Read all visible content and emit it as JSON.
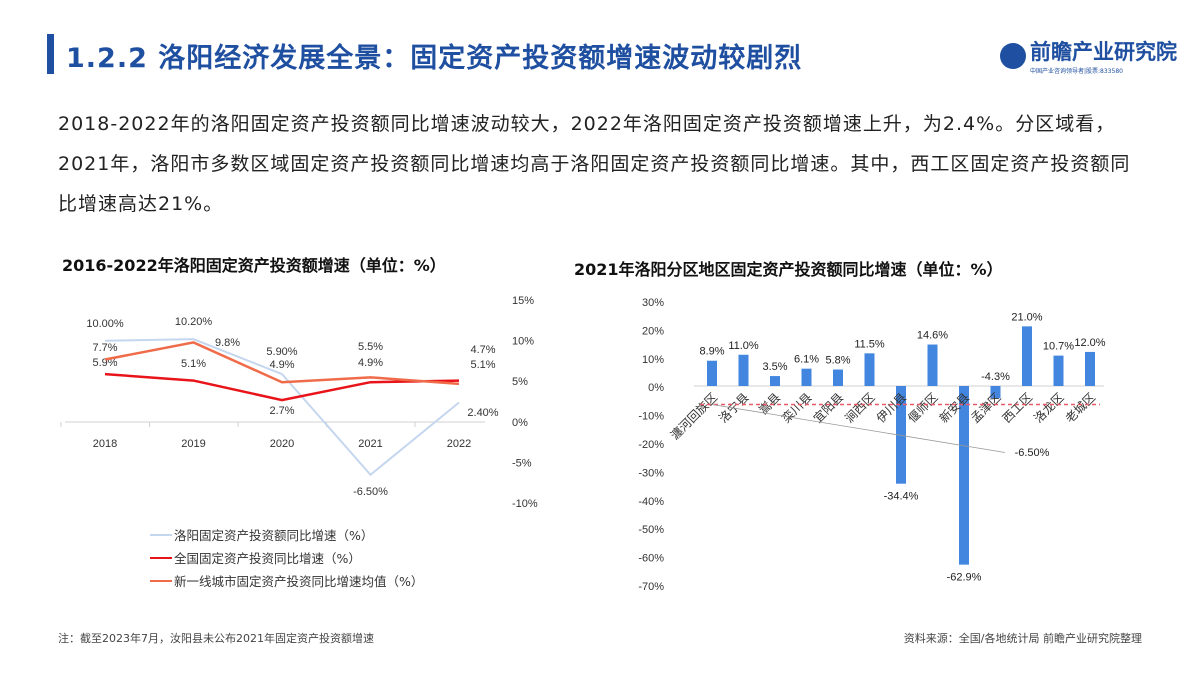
{
  "header": {
    "title": "1.2.2 洛阳经济发展全景：固定资产投资额增速波动较剧烈",
    "logo_name": "前瞻产业研究院",
    "logo_sub": "中国产业咨询领导者|股票:833580"
  },
  "intro": "2018-2022年的洛阳固定资产投资额同比增速波动较大，2022年洛阳固定资产投资额增速上升，为2.4%。分区域看，2021年，洛阳市多数区域固定资产投资额同比增速均高于洛阳固定资产投资额同比增速。其中，西工区固定资产投资额同比增速高达21%。",
  "colors": {
    "brand": "#1f4fa0",
    "luoyang": "#c5d6ef",
    "national": "#e8141a",
    "tier1": "#ef6b4a",
    "bar": "#4286e0",
    "avg_line": "#e85a6a"
  },
  "chart_data": [
    {
      "type": "line",
      "title": "2016-2022年洛阳固定资产投资额增速（单位：%）",
      "categories": [
        "2018",
        "2019",
        "2020",
        "2021",
        "2022"
      ],
      "ylim": [
        -10,
        15
      ],
      "yticks": [
        "15%",
        "10%",
        "5%",
        "0%",
        "-5%",
        "-10%"
      ],
      "y_axis": "right",
      "legend": "bottom",
      "series": [
        {
          "name": "洛阳固定资产投资额同比增速（%）",
          "values": [
            10.0,
            10.2,
            5.9,
            -6.5,
            2.4
          ],
          "labels": [
            "10.00%",
            "10.20%",
            "5.90%",
            "-6.50%",
            "2.40%"
          ],
          "color": "#c5d6ef"
        },
        {
          "name": "全国固定资产投资同比增速（%）",
          "values": [
            5.9,
            5.1,
            2.7,
            4.9,
            5.1
          ],
          "labels": [
            "5.9%",
            "5.1%",
            "2.7%",
            "4.9%",
            "5.1%"
          ],
          "color": "#e8141a"
        },
        {
          "name": "新一线城市固定资产投资同比增速均值（%）",
          "values": [
            7.7,
            9.8,
            4.9,
            5.5,
            4.7
          ],
          "labels": [
            "7.7%",
            "9.8%",
            "4.9%",
            "5.5%",
            "4.7%"
          ],
          "color": "#ef6b4a"
        }
      ]
    },
    {
      "type": "bar",
      "title": "2021年洛阳分区地区固定资产投资额同比增速（单位：%）",
      "categories": [
        "瀍河回族区",
        "洛宁县",
        "嵩县",
        "栾川县",
        "宜阳县",
        "涧西区",
        "伊川县",
        "偃师区",
        "新安县",
        "孟津区",
        "西工区",
        "洛龙区",
        "老城区"
      ],
      "values": [
        8.9,
        11.0,
        3.5,
        6.1,
        5.8,
        11.5,
        -34.4,
        14.6,
        -62.9,
        -4.3,
        21.0,
        10.7,
        12.0
      ],
      "labels": [
        "8.9%",
        "11.0%",
        "3.5%",
        "6.1%",
        "5.8%",
        "11.5%",
        "-34.4%",
        "14.6%",
        "-62.9%",
        "-4.3%",
        "21.0%",
        "10.7%",
        "12.0%"
      ],
      "ylim": [
        -70,
        30
      ],
      "yticks": [
        "30%",
        "20%",
        "10%",
        "0%",
        "-10%",
        "-20%",
        "-30%",
        "-40%",
        "-50%",
        "-60%",
        "-70%"
      ],
      "reference_line": {
        "value": -6.5,
        "label": "-6.50%",
        "style": "dashed"
      }
    }
  ],
  "footer": {
    "note": "注：截至2023年7月，汝阳县未公布2021年固定资产投资额增速",
    "source": "资料来源：全国/各地统计局 前瞻产业研究院整理"
  }
}
